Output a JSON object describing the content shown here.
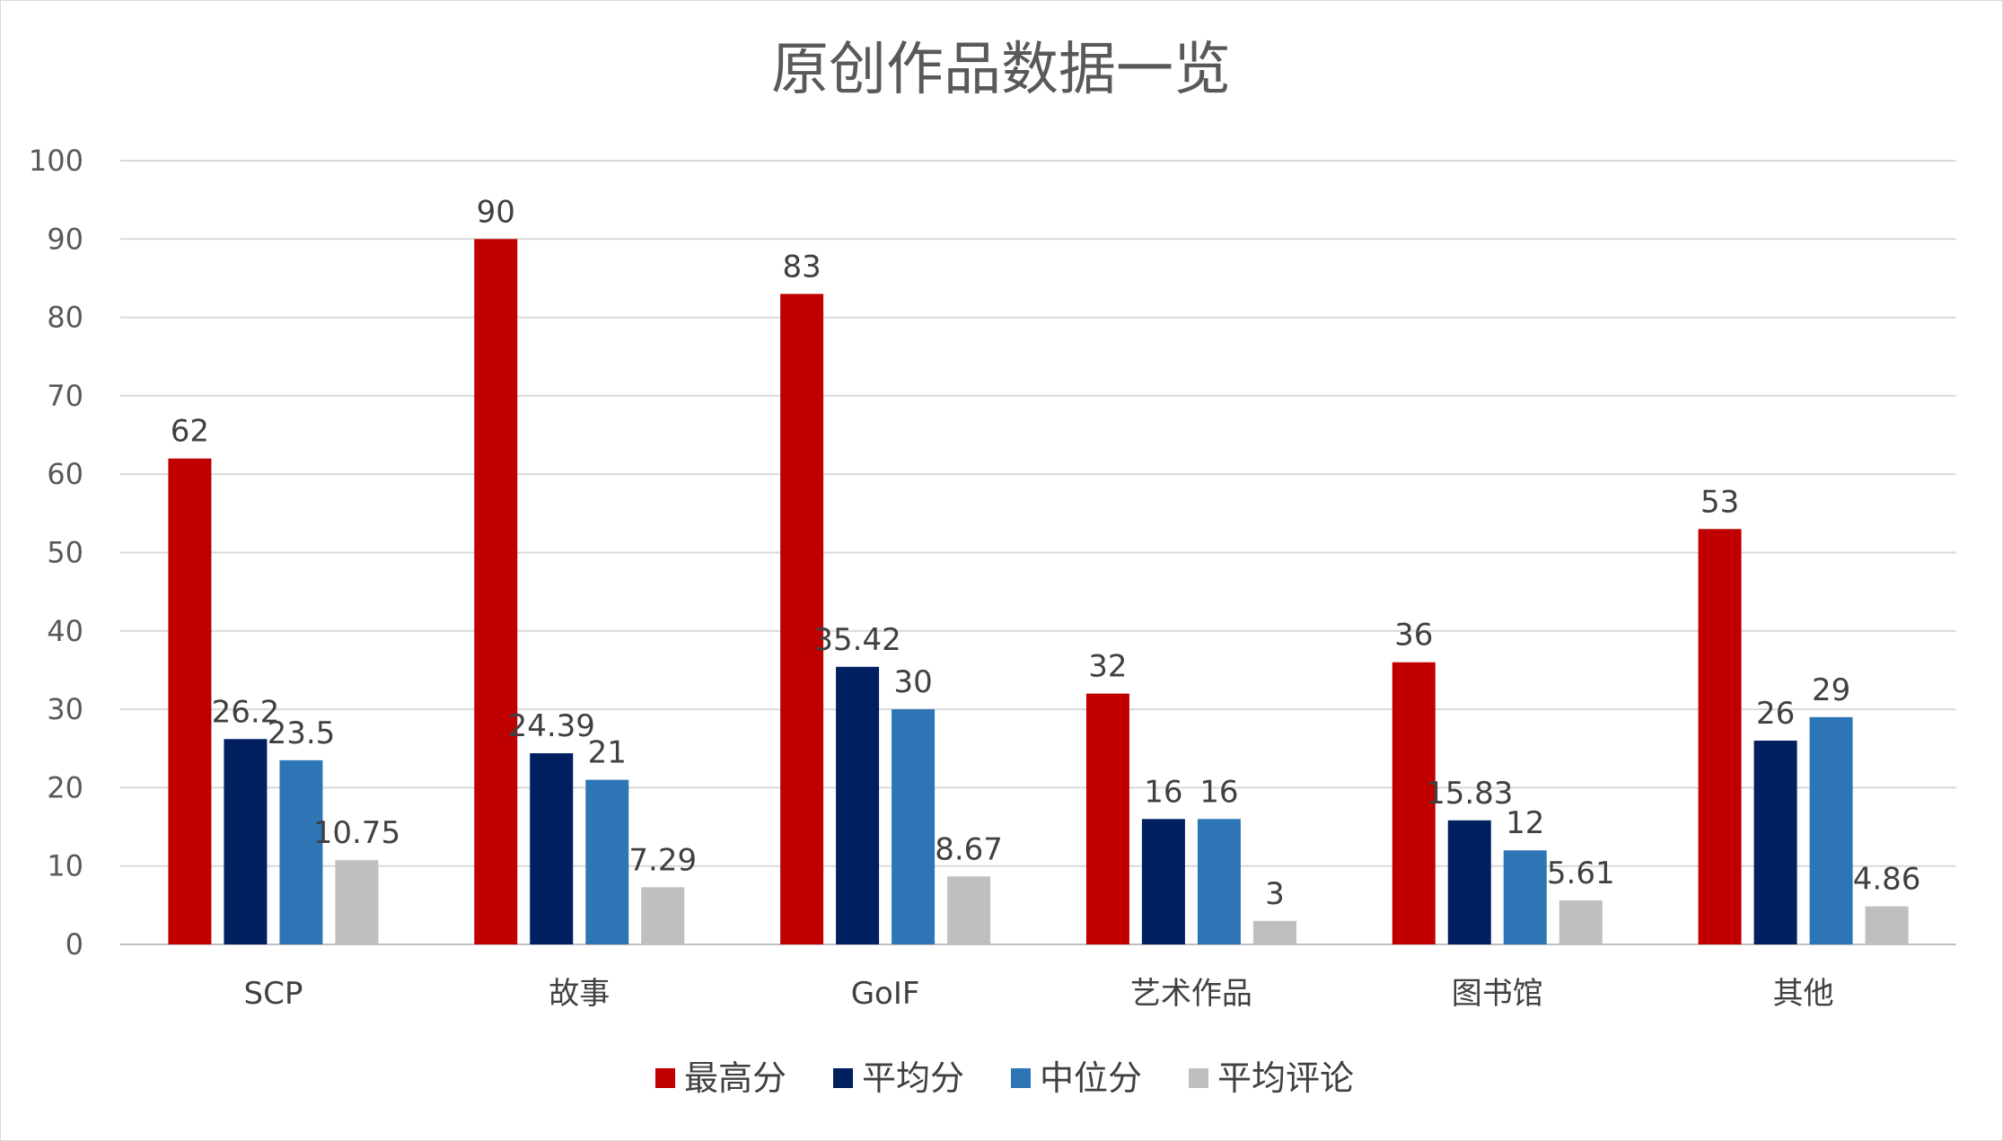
{
  "chart_data": {
    "type": "bar",
    "title": "原创作品数据一览",
    "categories": [
      "SCP",
      "故事",
      "GoIF",
      "艺术作品",
      "图书馆",
      "其他"
    ],
    "series": [
      {
        "name": "最高分",
        "color": "#c00000",
        "values": [
          62,
          90,
          83,
          32,
          36,
          53
        ]
      },
      {
        "name": "平均分",
        "color": "#002060",
        "values": [
          26.2,
          24.39,
          35.42,
          16,
          15.83,
          26
        ]
      },
      {
        "name": "中位分",
        "color": "#2e75b6",
        "values": [
          23.5,
          21,
          30,
          16,
          12,
          29
        ]
      },
      {
        "name": "平均评论",
        "color": "#bfbfbf",
        "values": [
          10.75,
          7.29,
          8.67,
          3,
          5.61,
          4.86
        ]
      }
    ],
    "ylim": [
      0,
      100
    ],
    "yticks": [
      0,
      10,
      20,
      30,
      40,
      50,
      60,
      70,
      80,
      90,
      100
    ],
    "grid": true,
    "legend": "bottom"
  }
}
